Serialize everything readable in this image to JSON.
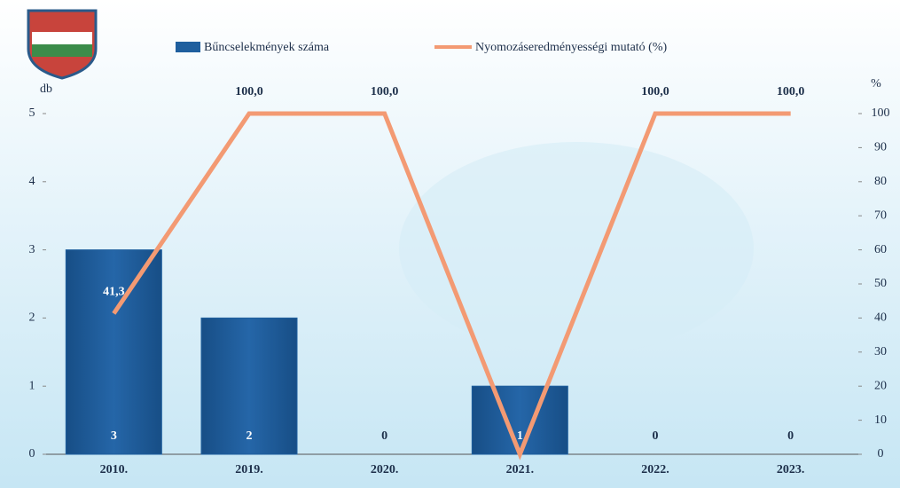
{
  "chart_data": {
    "type": "bar",
    "categories": [
      "2010.",
      "2019.",
      "2020.",
      "2021.",
      "2022.",
      "2023."
    ],
    "series": [
      {
        "name": "Bűncselekmények száma",
        "type": "bar",
        "color": "#1f5f9e",
        "values": [
          3,
          2,
          0,
          1,
          0,
          0
        ]
      },
      {
        "name": "Nyomozáseredményességi mutató (%)",
        "type": "line",
        "axis": "y2",
        "color": "#f39a73",
        "values": [
          41.3,
          100,
          100,
          0,
          100,
          100
        ],
        "value_labels": [
          "41,3",
          "100,0",
          "100,0",
          null,
          "100,0",
          "100,0"
        ]
      }
    ],
    "y_label": "db",
    "y2_label": "%",
    "ylim": [
      0,
      5
    ],
    "yticks": [
      0,
      1,
      2,
      3,
      4,
      5
    ],
    "y2lim": [
      0,
      100
    ],
    "y2ticks": [
      0,
      10,
      20,
      30,
      40,
      50,
      60,
      70,
      80,
      90,
      100
    ],
    "legend": "top"
  }
}
